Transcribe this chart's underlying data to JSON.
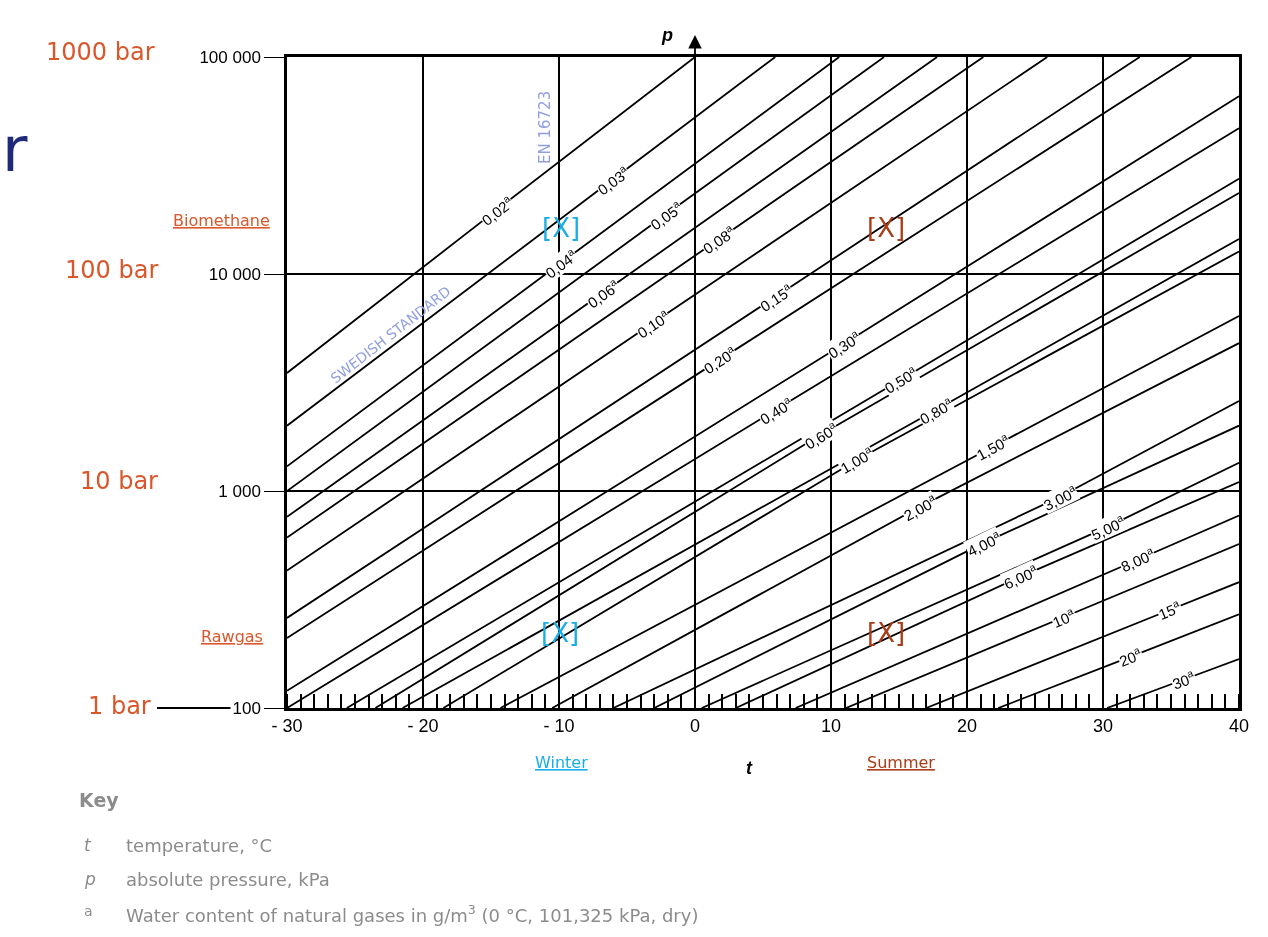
{
  "chart_data": {
    "type": "line",
    "xlabel": "t",
    "ylabel": "p",
    "xlim": [
      -30,
      40
    ],
    "xticks": [
      {
        "value": -30,
        "label": "- 30"
      },
      {
        "value": -20,
        "label": "- 20"
      },
      {
        "value": -10,
        "label": "- 10"
      },
      0,
      10,
      20,
      30,
      40
    ],
    "ylim": [
      100,
      100000
    ],
    "yticks": [
      100,
      {
        "value": 1000,
        "label": "1 000"
      },
      {
        "value": 10000,
        "label": "10 000"
      },
      {
        "value": 100000,
        "label": "100 000"
      }
    ],
    "log": "y",
    "grid": true,
    "legend": false,
    "marker": "none",
    "line_style": "solid",
    "series": [
      {
        "name": "0,02$^{a}$",
        "color": "#000000",
        "x": [
          -30,
          -14.6,
          0
        ],
        "values": [
          3500,
          19700,
          100000
        ]
      },
      {
        "name": "0,03$^{a}$",
        "color": "#000000",
        "x": [
          -30,
          -6.1,
          5.9
        ],
        "values": [
          2000,
          27100,
          100000
        ]
      },
      {
        "name": "0,04$^{a}$",
        "color": "#000000",
        "x": [
          -30,
          -9.9,
          10.6
        ],
        "values": [
          1300,
          11200,
          100000
        ]
      },
      {
        "name": "0,05$^{a}$",
        "color": "#000000",
        "x": [
          -30,
          -2.2,
          13.9
        ],
        "values": [
          1000,
          18700,
          100000
        ]
      },
      {
        "name": "0,06$^{a}$",
        "color": "#000000",
        "x": [
          -30,
          -6.8,
          17.8
        ],
        "values": [
          760,
          8170,
          100000
        ]
      },
      {
        "name": "0,08$^{a}$",
        "color": "#000000",
        "x": [
          -30,
          1.7,
          21.2
        ],
        "values": [
          610,
          14400,
          100000
        ]
      },
      {
        "name": "0,10$^{a}$",
        "color": "#000000",
        "x": [
          -30,
          -3.1,
          25.9
        ],
        "values": [
          430,
          5940,
          100000
        ]
      },
      {
        "name": "0,15$^{a}$",
        "color": "#000000",
        "x": [
          -30,
          5.9,
          32.7
        ],
        "values": [
          260,
          7830,
          100000
        ]
      },
      {
        "name": "0,20$^{a}$",
        "color": "#000000",
        "x": [
          -30,
          1.8,
          36.5
        ],
        "values": [
          210,
          4020,
          100000
        ]
      },
      {
        "name": "0,30$^{a}$",
        "color": "#000000",
        "x": [
          -30,
          10.9,
          40
        ],
        "values": [
          120,
          4750,
          66000
        ]
      },
      {
        "name": "0,40$^{a}$",
        "color": "#000000",
        "x": [
          -30,
          5.9,
          40
        ],
        "values": [
          100,
          2360,
          47000
        ]
      },
      {
        "name": "0,50$^{a}$",
        "color": "#000000",
        "x": [
          -25.6,
          15.1,
          40
        ],
        "values": [
          100,
          3250,
          27500
        ]
      },
      {
        "name": "0,60$^{a}$",
        "color": "#000000",
        "x": [
          -23.5,
          9.2,
          40
        ],
        "values": [
          100,
          1810,
          23600
        ]
      },
      {
        "name": "0,80$^{a}$",
        "color": "#000000",
        "x": [
          -21.5,
          17.7,
          40
        ],
        "values": [
          100,
          2360,
          14500
        ]
      },
      {
        "name": "1,00$^{a}$",
        "color": "#000000",
        "x": [
          -18.5,
          11.9,
          40
        ],
        "values": [
          100,
          1390,
          12700
        ]
      },
      {
        "name": "1,50$^{a}$",
        "color": "#000000",
        "x": [
          -14.3,
          21.9,
          40
        ],
        "values": [
          100,
          1600,
          6400
        ]
      },
      {
        "name": "2,00$^{a}$",
        "color": "#000000",
        "x": [
          -10.5,
          16.5,
          40
        ],
        "values": [
          100,
          843,
          4800
        ]
      },
      {
        "name": "3,00$^{a}$",
        "color": "#000000",
        "x": [
          -6,
          26.8,
          40
        ],
        "values": [
          100,
          938,
          2600
        ]
      },
      {
        "name": "4,00$^{a}$",
        "color": "#000000",
        "x": [
          -3,
          21.2,
          40
        ],
        "values": [
          100,
          575,
          2000
        ]
      },
      {
        "name": "5,00$^{a}$",
        "color": "#000000",
        "x": [
          0.5,
          30.3,
          40
        ],
        "values": [
          100,
          682,
          1350
        ]
      },
      {
        "name": "6,00$^{a}$",
        "color": "#000000",
        "x": [
          3,
          23.9,
          40
        ],
        "values": [
          100,
          402,
          1100
        ]
      },
      {
        "name": "8,00$^{a}$",
        "color": "#000000",
        "x": [
          7.4,
          32.5,
          40
        ],
        "values": [
          100,
          481,
          770
        ]
      },
      {
        "name": "10$^{a}$",
        "color": "#000000",
        "x": [
          11.1,
          27.1,
          40
        ],
        "values": [
          100,
          262,
          570
        ]
      },
      {
        "name": "15$^{a}$",
        "color": "#000000",
        "x": [
          17,
          34.9,
          40
        ],
        "values": [
          100,
          283,
          380
        ]
      },
      {
        "name": "20$^{a}$",
        "color": "#000000",
        "x": [
          22.3,
          32,
          40
        ],
        "values": [
          100,
          172,
          270
        ]
      },
      {
        "name": "30$^{a}$",
        "color": "#000000",
        "x": [
          30.3,
          35.9,
          40
        ],
        "values": [
          100,
          135,
          168
        ]
      }
    ],
    "annotations": [
      "[X]",
      "[X]",
      "[X]",
      "[X]",
      "EN 16723",
      "SWEDISH STANDARD",
      "1000 bar",
      "100 bar",
      "10 bar",
      "1 bar",
      "Biomethane",
      "Rawgas",
      "Winter",
      "Summer",
      "r",
      "Key",
      "t",
      "temperature, °C",
      "p",
      "absolute pressure, kPa",
      "a",
      "Water content of natural gases in g/m$^{3}$ (0 °C, 101,325 kPa, dry)"
    ]
  }
}
